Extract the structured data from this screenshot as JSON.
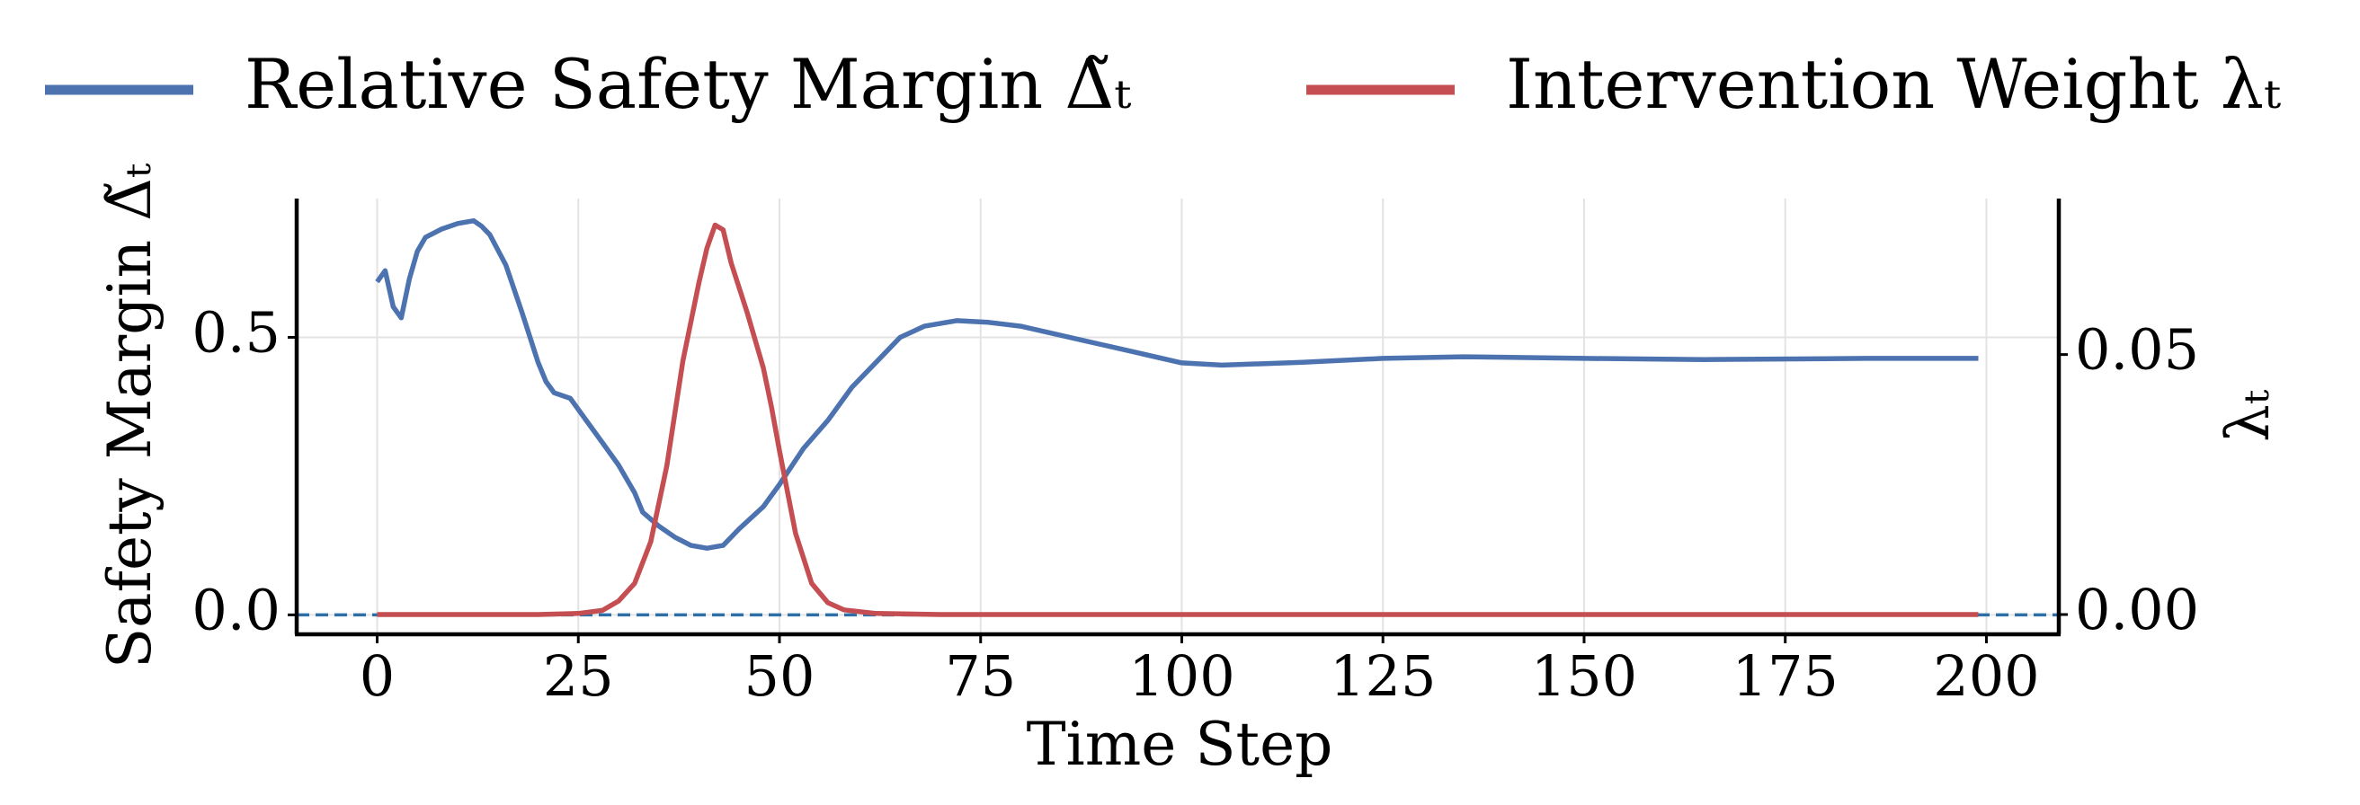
{
  "chart_data": {
    "type": "line",
    "xlabel": "Time Step",
    "ylabel": "Safety Margin Δ̃ₜ",
    "y2label": "λₜ",
    "xlim": [
      -10,
      209
    ],
    "xticks": [
      0,
      25,
      50,
      75,
      100,
      125,
      150,
      175,
      200
    ],
    "ylim": [
      -0.035,
      0.75
    ],
    "yticks": [
      {
        "value": 0,
        "label": "0.0"
      },
      {
        "value": 0.5,
        "label": "0.5"
      }
    ],
    "y2lim": [
      -0.0038,
      0.08
    ],
    "y2ticks": [
      {
        "value": 0,
        "label": "0.00"
      },
      {
        "value": 0.05,
        "label": "0.05"
      }
    ],
    "grid": true,
    "hline": {
      "value": 0,
      "color": "#2f6fa8",
      "dashed": true
    },
    "legend": "top",
    "series": [
      {
        "name": "Relative Safety Margin Δ̃ₜ",
        "color": "#4c72b0",
        "x": [
          0,
          1,
          2,
          3,
          4,
          5,
          6,
          8,
          10,
          12,
          13,
          14,
          16,
          18,
          20,
          21,
          22,
          24,
          26,
          28,
          30,
          32,
          33,
          35,
          37,
          39,
          41,
          43,
          45,
          48,
          50,
          53,
          56,
          59,
          62,
          65,
          68,
          72,
          76,
          80,
          90,
          100,
          105,
          115,
          125,
          135,
          150,
          165,
          185,
          199
        ],
        "values": [
          0.6,
          0.62,
          0.555,
          0.535,
          0.605,
          0.655,
          0.68,
          0.695,
          0.705,
          0.71,
          0.7,
          0.685,
          0.63,
          0.545,
          0.455,
          0.42,
          0.4,
          0.39,
          0.35,
          0.31,
          0.27,
          0.22,
          0.185,
          0.16,
          0.14,
          0.125,
          0.12,
          0.125,
          0.155,
          0.195,
          0.235,
          0.3,
          0.35,
          0.41,
          0.455,
          0.5,
          0.52,
          0.53,
          0.527,
          0.52,
          0.487,
          0.454,
          0.45,
          0.455,
          0.462,
          0.465,
          0.462,
          0.46,
          0.462,
          0.462
        ]
      },
      {
        "name": "Intervention Weight λₜ",
        "color": "#c44e52",
        "axis": "y2",
        "x": [
          0,
          20,
          25,
          28,
          30,
          32,
          34,
          36,
          38,
          40,
          41,
          42,
          43,
          44,
          46,
          48,
          49,
          50,
          52,
          54,
          56,
          58,
          62,
          70,
          199
        ],
        "values": [
          0,
          0,
          0.0002,
          0.0008,
          0.0026,
          0.006,
          0.014,
          0.0286,
          0.0488,
          0.0639,
          0.0705,
          0.0749,
          0.074,
          0.0676,
          0.058,
          0.0474,
          0.04,
          0.0315,
          0.0156,
          0.006,
          0.0023,
          0.0009,
          0.0002,
          0,
          0
        ]
      }
    ]
  }
}
